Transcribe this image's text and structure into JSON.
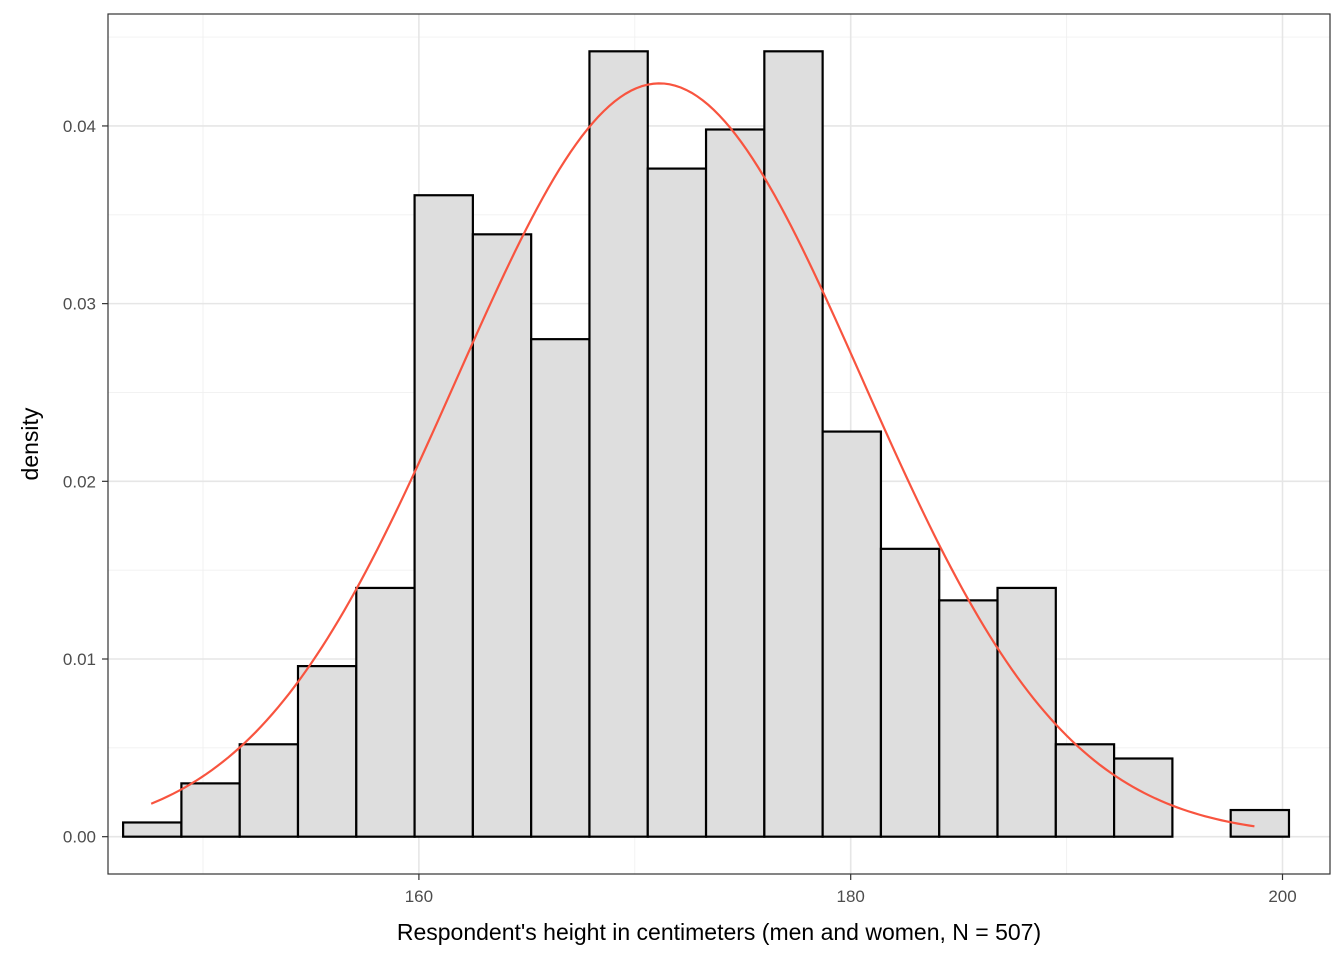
{
  "chart_data": {
    "type": "bar",
    "subtype": "histogram",
    "xlabel": "Respondent's height in centimeters (men and women, N = 507)",
    "ylabel": "density",
    "xlim": [
      145.6,
      202.2
    ],
    "ylim": [
      -0.0021,
      0.0463
    ],
    "x_ticks": [
      160,
      180,
      200
    ],
    "y_ticks": [
      0.0,
      0.01,
      0.02,
      0.03,
      0.04
    ],
    "x_tick_labels": [
      "160",
      "180",
      "200"
    ],
    "y_tick_labels": [
      "0.00",
      "0.01",
      "0.02",
      "0.03",
      "0.04"
    ],
    "grid": true,
    "bins": [
      {
        "x0": 146.3,
        "x1": 149.0,
        "density": 0.0008
      },
      {
        "x0": 149.0,
        "x1": 151.7,
        "density": 0.003
      },
      {
        "x0": 151.7,
        "x1": 154.4,
        "density": 0.0052
      },
      {
        "x0": 154.4,
        "x1": 157.1,
        "density": 0.0096
      },
      {
        "x0": 157.1,
        "x1": 159.8,
        "density": 0.014
      },
      {
        "x0": 159.8,
        "x1": 162.5,
        "density": 0.0361
      },
      {
        "x0": 162.5,
        "x1": 165.2,
        "density": 0.0339
      },
      {
        "x0": 165.2,
        "x1": 167.9,
        "density": 0.028
      },
      {
        "x0": 167.9,
        "x1": 170.6,
        "density": 0.0442
      },
      {
        "x0": 170.6,
        "x1": 173.3,
        "density": 0.0376
      },
      {
        "x0": 173.3,
        "x1": 176.0,
        "density": 0.0398
      },
      {
        "x0": 176.0,
        "x1": 178.7,
        "density": 0.0442
      },
      {
        "x0": 178.7,
        "x1": 181.4,
        "density": 0.0228
      },
      {
        "x0": 181.4,
        "x1": 184.1,
        "density": 0.0162
      },
      {
        "x0": 184.1,
        "x1": 186.8,
        "density": 0.0133
      },
      {
        "x0": 186.8,
        "x1": 189.5,
        "density": 0.014
      },
      {
        "x0": 189.5,
        "x1": 192.2,
        "density": 0.0052
      },
      {
        "x0": 192.2,
        "x1": 194.9,
        "density": 0.0044
      },
      {
        "x0": 194.9,
        "x1": 197.6,
        "density": 0.0
      },
      {
        "x0": 197.6,
        "x1": 200.3,
        "density": 0.0015
      }
    ],
    "normal_curve": {
      "mean": 171.14,
      "sd": 9.41,
      "x_from": 147.6,
      "x_to": 198.7
    },
    "colors": {
      "bar_fill": "#dedede",
      "bar_stroke": "#000000",
      "curve": "#f8543f"
    }
  }
}
